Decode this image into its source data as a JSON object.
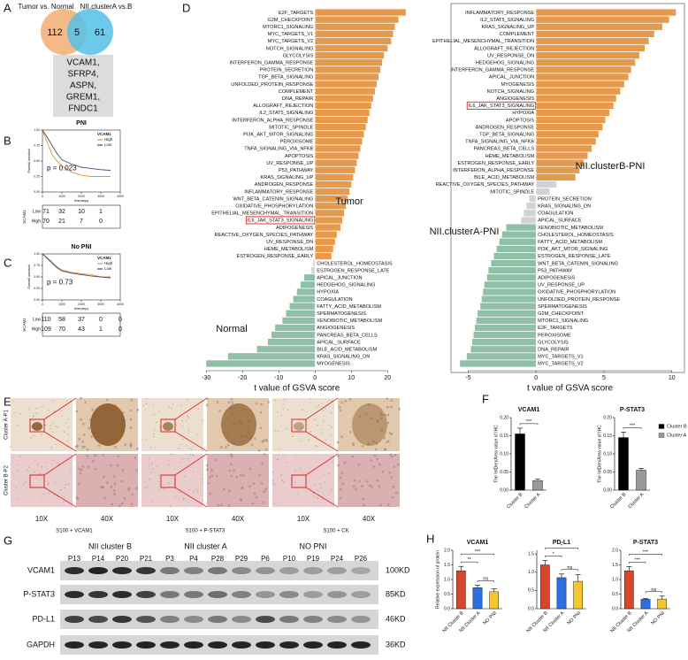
{
  "panel_labels": [
    "A",
    "B",
    "C",
    "D",
    "E",
    "F",
    "G",
    "H"
  ],
  "venn": {
    "left_label": "Tumor vs. Normal",
    "right_label": "NII.clusterA vs.B",
    "left_only": 112,
    "both": 5,
    "right_only": 61,
    "genes": [
      "VCAM1,",
      "SFRP4,",
      "ASPN,",
      "GREM1,",
      "FNDC1"
    ]
  },
  "ihc": {
    "row_labels": [
      "Cluster A-P1",
      "Cluster B-P2"
    ],
    "magnifications": [
      "10X",
      "40X",
      "10X",
      "40X",
      "10X",
      "40X"
    ],
    "stains": [
      "S100 + VCAM1",
      "S100 + P-STAT3",
      "S100 + CK"
    ]
  },
  "western": {
    "groups": [
      {
        "name": "NII cluster B",
        "lanes": [
          "P13",
          "P14",
          "P20",
          "P21"
        ]
      },
      {
        "name": "NII cluster A",
        "lanes": [
          "P3",
          "P4",
          "P28",
          "P29"
        ]
      },
      {
        "name": "NO PNI",
        "lanes": [
          "P6",
          "P10",
          "P19",
          "P24",
          "P26"
        ]
      }
    ],
    "rows": [
      {
        "name": "VCAM1",
        "size": "100KD"
      },
      {
        "name": "P-STAT3",
        "size": "85KD"
      },
      {
        "name": "PD-L1",
        "size": "46KD"
      },
      {
        "name": "GAPDH",
        "size": "36KD"
      }
    ]
  },
  "chart_data": [
    {
      "type": "line",
      "title": "PNI",
      "xlabel": "time(days)",
      "ylabel": "Overall survival",
      "legend_title": "VCAM1",
      "annotation": "p = 0.023",
      "x": [
        0,
        250,
        500,
        750,
        1000,
        1500,
        2000,
        2500,
        3000,
        3500
      ],
      "series": [
        {
          "name": "High",
          "color": "#e8913a",
          "values": [
            1,
            0.8,
            0.6,
            0.5,
            0.42,
            0.32,
            0.27,
            0.25,
            0.25,
            0.25
          ]
        },
        {
          "name": "Low",
          "color": "#3b4f6e",
          "values": [
            1,
            0.88,
            0.75,
            0.62,
            0.52,
            0.45,
            0.4,
            0.38,
            0.36,
            0.35
          ]
        }
      ],
      "xlim": [
        0,
        4000
      ],
      "xticks": [
        0,
        1000,
        2000,
        3000,
        4000
      ],
      "ylim": [
        0,
        1
      ],
      "yticks": [
        {
          "value": 0,
          "label": "0.00"
        },
        0.25,
        {
          "value": 0.5,
          "label": "0.50"
        },
        0.75,
        {
          "value": 1,
          "label": "1.00"
        }
      ],
      "risk_table": {
        "title": "VCAM1",
        "rows": [
          {
            "name": "Low",
            "color": "#3b4f6e",
            "values": [
              71,
              32,
              10,
              1
            ]
          },
          {
            "name": "High",
            "color": "#e8913a",
            "values": [
              70,
              21,
              7,
              0
            ]
          }
        ]
      }
    },
    {
      "type": "line",
      "title": "No PNI",
      "xlabel": "time(days)",
      "ylabel": "Overall survival",
      "legend_title": "VCAM1",
      "annotation": "p = 0.73",
      "x": [
        0,
        250,
        500,
        750,
        1000,
        1500,
        2000,
        2500,
        3000,
        3500
      ],
      "series": [
        {
          "name": "High",
          "color": "#e8913a",
          "values": [
            1,
            0.92,
            0.82,
            0.72,
            0.65,
            0.6,
            0.57,
            0.55,
            0.5,
            0.5
          ]
        },
        {
          "name": "Low",
          "color": "#3b4f6e",
          "values": [
            1,
            0.9,
            0.8,
            0.7,
            0.63,
            0.58,
            0.55,
            0.52,
            0.5,
            0.48
          ]
        }
      ],
      "xlim": [
        0,
        4000
      ],
      "xticks": [
        0,
        1000,
        2000,
        3000,
        4000
      ],
      "ylim": [
        0,
        1
      ],
      "yticks": [
        {
          "value": 0,
          "label": "0.00"
        },
        0.25,
        {
          "value": 0.5,
          "label": "0.50"
        },
        0.75,
        {
          "value": 1,
          "label": "1.00"
        }
      ],
      "risk_table": {
        "title": "VCAM1",
        "rows": [
          {
            "name": "Low",
            "color": "#3b4f6e",
            "values": [
              110,
              58,
              37,
              0,
              0
            ]
          },
          {
            "name": "High",
            "color": "#e8913a",
            "values": [
              109,
              70,
              43,
              1,
              0
            ]
          }
        ]
      }
    },
    {
      "type": "hbar",
      "xlabel": "t value of GSVA score",
      "annotations": [
        "Tumor",
        "Normal"
      ],
      "highlight_index": 29,
      "categories": [
        "E2F_TARGETS",
        "G2M_CHECKPOINT",
        "MTORC1_SIGNALING",
        "MYC_TARGETS_V1",
        "MYC_TARGETS_V2",
        "NOTCH_SIGNALING",
        "GLYCOLYSIS",
        "INTERFERON_GAMMA_RESPONSE",
        "PROTEIN_SECRETION",
        "TGF_BETA_SIGNALING",
        "UNFOLDED_PROTEIN_RESPONSE",
        "COMPLEMENT",
        "DNA_REPAIR",
        "ALLOGRAFT_REJECTION",
        "IL2_STAT5_SIGNALING",
        "INTERFERON_ALPHA_RESPONSE",
        "MITOTIC_SPINDLE",
        "PI3K_AKT_MTOR_SIGNALING",
        "PEROXISOME",
        "TNFA_SIGNALING_VIA_NFKB",
        "APOPTOSIS",
        "UV_RESPONSE_UP",
        "P53_PATHWAY",
        "KRAS_SIGNALING_UP",
        "ANDROGEN_RESPONSE",
        "INFLAMMATORY_RESPONSE",
        "WNT_BETA_CATENIN_SIGNALING",
        "OXIDATIVE_PHOSPHORYLATION",
        "EPITHELIAL_MESENCHYMAL_TRANSITION",
        "IL6_JAK_STAT3_SIGNALING",
        "ADIPOGENESIS",
        "REACTIVE_OXYGEN_SPECIES_PATHWAY",
        "UV_RESPONSE_DN",
        "HEME_METABOLISM",
        "ESTROGEN_RESPONSE_EARLY",
        "CHOLESTEROL_HOMEOSTASIS",
        "ESTROGEN_RESPONSE_LATE",
        "APICAL_JUNCTION",
        "HEDGEHOG_SIGNALING",
        "HYPOXIA",
        "COAGULATION",
        "FATTY_ACID_METABOLISM",
        "SPERMATOGENESIS",
        "XENOBIOTIC_METABOLISM",
        "ANGIOGENESIS",
        "PANCREAS_BETA_CELLS",
        "APICAL_SURFACE",
        "BILE_ACID_METABOLISM",
        "KRAS_SIGNALING_DN",
        "MYOGENESIS"
      ],
      "values": [
        25,
        23,
        22,
        21.5,
        21,
        20,
        19,
        18.5,
        18,
        17.5,
        17,
        16.5,
        16,
        15.5,
        15,
        14.5,
        14,
        13.5,
        13,
        12.5,
        12,
        11.5,
        11,
        10.5,
        10,
        9.5,
        9,
        8.5,
        8,
        7.5,
        7,
        6,
        5.5,
        5,
        4.5,
        -0.5,
        -1,
        -3,
        -4,
        -5,
        -6,
        -7,
        -8,
        -9,
        -11,
        -12,
        -13,
        -16,
        -24,
        -30
      ],
      "colors": [
        "#e79a4b",
        "#e79a4b",
        "#e79a4b",
        "#e79a4b",
        "#e79a4b",
        "#e79a4b",
        "#e79a4b",
        "#e79a4b",
        "#e79a4b",
        "#e79a4b",
        "#e79a4b",
        "#e79a4b",
        "#e79a4b",
        "#e79a4b",
        "#e79a4b",
        "#e79a4b",
        "#e79a4b",
        "#e79a4b",
        "#e79a4b",
        "#e79a4b",
        "#e79a4b",
        "#e79a4b",
        "#e79a4b",
        "#e79a4b",
        "#e79a4b",
        "#e79a4b",
        "#e79a4b",
        "#e79a4b",
        "#e79a4b",
        "#e79a4b",
        "#e79a4b",
        "#e79a4b",
        "#e79a4b",
        "#e79a4b",
        "#e79a4b",
        "#d3d3d3",
        "#d3d3d3",
        "#8fbfa6",
        "#8fbfa6",
        "#8fbfa6",
        "#8fbfa6",
        "#8fbfa6",
        "#8fbfa6",
        "#8fbfa6",
        "#8fbfa6",
        "#8fbfa6",
        "#8fbfa6",
        "#8fbfa6",
        "#8fbfa6",
        "#8fbfa6"
      ],
      "xlim": [
        -32,
        27
      ],
      "xticks": [
        -30,
        -20,
        -10,
        0,
        10,
        20
      ]
    },
    {
      "type": "hbar",
      "xlabel": "t value of GSVA score",
      "annotations": [
        "NII.clusterB-PNI",
        "NII.clusterA-PNI"
      ],
      "highlight_index": 13,
      "categories": [
        "INFLAMMATORY_RESPONSE",
        "IL2_STAT5_SIGNALING",
        "KRAS_SIGNALING_UP",
        "COMPLEMENT",
        "EPITHELIAL_MESENCHYMAL_TRANSITION",
        "ALLOGRAFT_REJECTION",
        "UV_RESPONSE_DN",
        "HEDGEHOG_SIGNALING",
        "INTERFERON_GAMMA_RESPONSE",
        "APICAL_JUNCTION",
        "MYOGENESIS",
        "NOTCH_SIGNALING",
        "ANGIOGENESIS",
        "IL6_JAK_STAT3_SIGNALING",
        "HYPOXIA",
        "APOPTOSIS",
        "ANDROGEN_RESPONSE",
        "TGF_BETA_SIGNALING",
        "TNFA_SIGNALING_VIA_NFKB",
        "PANCREAS_BETA_CELLS",
        "HEME_METABOLISM",
        "ESTROGEN_RESPONSE_EARLY",
        "INTERFERON_ALPHA_RESPONSE",
        "BILE_ACID_METABOLISM",
        "REACTIVE_OXYGEN_SPECIES_PATHWAY",
        "MITOTIC_SPINDLE",
        "PROTEIN_SECRETION",
        "KRAS_SIGNALING_DN",
        "COAGULATION",
        "APICAL_SURFACE",
        "XENOBIOTIC_METABOLISM",
        "CHOLESTEROL_HOMEOSTASIS",
        "FATTY_ACID_METABOLISM",
        "PI3K_AKT_MTOR_SIGNALING",
        "ESTROGEN_RESPONSE_LATE",
        "WNT_BETA_CATENIN_SIGNALING",
        "P53_PATHWAY",
        "ADIPOGENESIS",
        "UV_RESPONSE_UP",
        "OXIDATIVE_PHOSPHORYLATION",
        "UNFOLDED_PROTEIN_RESPONSE",
        "SPERMATOGENESIS",
        "G2M_CHECKPOINT",
        "MTORC1_SIGNALING",
        "E2F_TARGETS",
        "PEROXISOME",
        "GLYCOLYSIS",
        "DNA_REPAIR",
        "MYC_TARGETS_V1",
        "MYC_TARGETS_V2"
      ],
      "values": [
        10.3,
        9.8,
        9.3,
        8.7,
        8.3,
        8,
        7.6,
        7.3,
        7,
        6.8,
        6.5,
        6.2,
        5.9,
        5.7,
        5.4,
        5.1,
        4.9,
        4.6,
        4.4,
        4.1,
        3.8,
        3.5,
        3.2,
        2.9,
        1.5,
        1,
        -0.5,
        -0.7,
        -0.9,
        -1.1,
        -2.2,
        -2.5,
        -2.7,
        -2.9,
        -3.1,
        -3.3,
        -3.5,
        -3.6,
        -3.8,
        -3.9,
        -4,
        -4.1,
        -4.3,
        -4.4,
        -4.5,
        -4.6,
        -4.7,
        -4.8,
        -5.1,
        -5.6
      ],
      "colors": [
        "#e79a4b",
        "#e79a4b",
        "#e79a4b",
        "#e79a4b",
        "#e79a4b",
        "#e79a4b",
        "#e79a4b",
        "#e79a4b",
        "#e79a4b",
        "#e79a4b",
        "#e79a4b",
        "#e79a4b",
        "#e79a4b",
        "#e79a4b",
        "#e79a4b",
        "#e79a4b",
        "#e79a4b",
        "#e79a4b",
        "#e79a4b",
        "#e79a4b",
        "#e79a4b",
        "#e79a4b",
        "#e79a4b",
        "#e79a4b",
        "#d3d3d3",
        "#d3d3d3",
        "#d3d3d3",
        "#d3d3d3",
        "#d3d3d3",
        "#d3d3d3",
        "#8fbfa6",
        "#8fbfa6",
        "#8fbfa6",
        "#8fbfa6",
        "#8fbfa6",
        "#8fbfa6",
        "#8fbfa6",
        "#8fbfa6",
        "#8fbfa6",
        "#8fbfa6",
        "#8fbfa6",
        "#8fbfa6",
        "#8fbfa6",
        "#8fbfa6",
        "#8fbfa6",
        "#8fbfa6",
        "#8fbfa6",
        "#8fbfa6",
        "#8fbfa6",
        "#8fbfa6"
      ],
      "xlim": [
        -6,
        10.8
      ],
      "xticks": [
        -5,
        0,
        5,
        10
      ]
    },
    {
      "type": "bar",
      "title": "VCAM1",
      "ylabel": "The IntDen/Area value of IHC",
      "categories": [
        "Cluster B",
        "Cluster A"
      ],
      "values": [
        0.155,
        0.026
      ],
      "errors": [
        0.016,
        0.004
      ],
      "colors": [
        "#000000",
        "#9a9a9a"
      ],
      "ylim": [
        0,
        0.2
      ],
      "yticks": [
        {
          "value": 0,
          "label": "0.00"
        },
        0.05,
        {
          "value": 0.1,
          "label": "0.10"
        },
        0.15,
        {
          "value": 0.2,
          "label": "0.20"
        }
      ],
      "comparisons": [
        {
          "pair": [
            0,
            1
          ],
          "label": "***"
        }
      ]
    },
    {
      "type": "bar",
      "title": "P-STAT3",
      "ylabel": "The IntDen/Area value of IHC",
      "categories": [
        "Cluster B",
        "Cluster A"
      ],
      "values": [
        0.145,
        0.055
      ],
      "errors": [
        0.015,
        0.005
      ],
      "colors": [
        "#000000",
        "#9a9a9a"
      ],
      "legend": true,
      "ylim": [
        0,
        0.2
      ],
      "yticks": [
        {
          "value": 0,
          "label": "0.00"
        },
        0.05,
        {
          "value": 0.1,
          "label": "0.10"
        },
        0.15,
        {
          "value": 0.2,
          "label": "0.20"
        }
      ],
      "comparisons": [
        {
          "pair": [
            0,
            1
          ],
          "label": "***"
        }
      ]
    },
    {
      "type": "bar",
      "title": "VCAM1",
      "ylabel": "Relative expression of protein",
      "categories": [
        "NII Cluster B",
        "NII Cluster A",
        "NO PNI"
      ],
      "values": [
        1.3,
        0.72,
        0.58
      ],
      "errors": [
        0.15,
        0.08,
        0.1
      ],
      "colors": [
        "#d9472b",
        "#2d6fe0",
        "#f5c52c"
      ],
      "ylim": [
        0,
        2
      ],
      "yticks": [
        {
          "value": 0,
          "label": "0.0"
        },
        0.5,
        {
          "value": 1,
          "label": "1.0"
        },
        1.5,
        {
          "value": 2,
          "label": "2.0"
        }
      ],
      "comparisons": [
        {
          "pair": [
            0,
            1
          ],
          "label": "**"
        },
        {
          "pair": [
            0,
            2
          ],
          "label": "***"
        },
        {
          "pair": [
            1,
            2
          ],
          "label": "ns"
        }
      ]
    },
    {
      "type": "bar",
      "title": "PD-L1",
      "categories": [
        "NII Cluster B",
        "NII Cluster A",
        "NO PNI"
      ],
      "values": [
        1.2,
        0.85,
        0.75
      ],
      "errors": [
        0.12,
        0.1,
        0.18
      ],
      "colors": [
        "#d9472b",
        "#2d6fe0",
        "#f5c52c"
      ],
      "ylim": [
        0,
        1.6
      ],
      "yticks": [
        {
          "value": 0,
          "label": "0.0"
        },
        0.5,
        {
          "value": 1,
          "label": "1.0"
        },
        1.5
      ],
      "comparisons": [
        {
          "pair": [
            0,
            1
          ],
          "label": "*"
        },
        {
          "pair": [
            0,
            2
          ],
          "label": "*"
        },
        {
          "pair": [
            1,
            2
          ],
          "label": "ns"
        }
      ]
    },
    {
      "type": "bar",
      "title": "P-STAT3",
      "categories": [
        "NII Cluster B",
        "NII Cluster A",
        "NO PNI"
      ],
      "values": [
        1.3,
        0.32,
        0.33
      ],
      "errors": [
        0.14,
        0.03,
        0.1
      ],
      "colors": [
        "#d9472b",
        "#2d6fe0",
        "#f5c52c"
      ],
      "ylim": [
        0,
        2
      ],
      "yticks": [
        {
          "value": 0,
          "label": "0.0"
        },
        0.5,
        {
          "value": 1,
          "label": "1.0"
        },
        1.5,
        {
          "value": 2,
          "label": "2.0"
        }
      ],
      "comparisons": [
        {
          "pair": [
            0,
            1
          ],
          "label": "***"
        },
        {
          "pair": [
            0,
            2
          ],
          "label": "***"
        },
        {
          "pair": [
            1,
            2
          ],
          "label": "ns"
        }
      ]
    }
  ]
}
